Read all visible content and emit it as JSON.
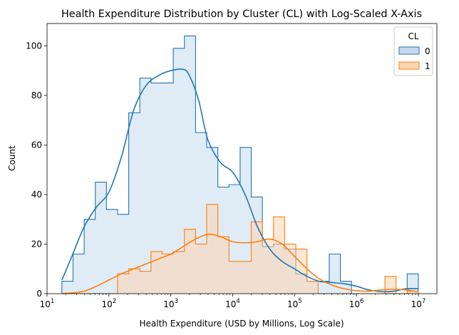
{
  "chart_data": {
    "type": "histogram",
    "title": "Health Expenditure Distribution by Cluster (CL) with Log-Scaled X-Axis",
    "xlabel": "Health Expenditure (USD by Millions, Log Scale)",
    "ylabel": "Count",
    "x_scale": "log",
    "x_range_log10": [
      1.0,
      7.3
    ],
    "ylim": [
      0,
      109
    ],
    "y_ticks": [
      0,
      20,
      40,
      60,
      80,
      100
    ],
    "x_ticks": [
      {
        "base": "10",
        "exp": "1",
        "value": 10
      },
      {
        "base": "10",
        "exp": "2",
        "value": 100
      },
      {
        "base": "10",
        "exp": "3",
        "value": 1000
      },
      {
        "base": "10",
        "exp": "4",
        "value": 10000
      },
      {
        "base": "10",
        "exp": "5",
        "value": 100000
      },
      {
        "base": "10",
        "exp": "6",
        "value": 1000000
      },
      {
        "base": "10",
        "exp": "7",
        "value": 10000000
      }
    ],
    "bin_edges_log10": [
      1.24,
      1.42,
      1.6,
      1.78,
      1.96,
      2.14,
      2.32,
      2.5,
      2.68,
      2.86,
      3.04,
      3.22,
      3.4,
      3.58,
      3.76,
      3.94,
      4.12,
      4.3,
      4.48,
      4.66,
      4.84,
      5.02,
      5.2,
      5.38,
      5.56,
      5.74,
      5.92,
      6.1,
      6.28,
      6.46,
      6.64,
      6.82,
      7.0
    ],
    "legend": {
      "title": "CL",
      "position": "top-right"
    },
    "series": [
      {
        "name": "0",
        "color": "#1f77b4",
        "fill": "#c5daec",
        "counts": [
          5,
          16,
          30,
          45,
          34,
          32,
          73,
          87,
          85,
          85,
          99,
          104,
          65,
          59,
          43,
          44,
          59,
          39,
          19,
          20,
          18,
          8,
          5,
          5,
          16,
          5,
          0,
          0,
          0,
          0,
          0,
          8
        ],
        "kde_x_log10": [
          1.24,
          1.4,
          1.6,
          1.8,
          2.0,
          2.2,
          2.4,
          2.6,
          2.8,
          3.0,
          3.2,
          3.3,
          3.45,
          3.6,
          3.8,
          4.0,
          4.2,
          4.4,
          4.6,
          4.8,
          5.0,
          5.2,
          5.4,
          5.6,
          5.8,
          6.0,
          6.2,
          6.4,
          6.6,
          6.8,
          7.0
        ],
        "kde_y": [
          5.5,
          15,
          27,
          35,
          41,
          55,
          74,
          84,
          88,
          90,
          90.5,
          88,
          78,
          62,
          53,
          49,
          40,
          27,
          18,
          13,
          10,
          7,
          5,
          4.5,
          4,
          3,
          1.5,
          0.8,
          1,
          2,
          2
        ]
      },
      {
        "name": "1",
        "color": "#ff7f0e",
        "fill": "#fdd5b1",
        "counts": [
          0,
          0,
          0,
          0,
          0,
          8,
          10,
          9,
          17,
          16,
          17,
          26,
          20,
          36,
          23,
          13,
          13,
          29,
          22,
          31,
          20,
          18,
          5,
          0,
          0,
          0,
          0,
          0,
          0,
          7,
          0,
          1
        ],
        "kde_x_log10": [
          1.24,
          1.4,
          1.6,
          1.8,
          2.0,
          2.2,
          2.4,
          2.6,
          2.8,
          3.0,
          3.2,
          3.4,
          3.6,
          3.8,
          4.0,
          4.2,
          4.4,
          4.6,
          4.8,
          5.0,
          5.2,
          5.4,
          5.6,
          5.8,
          6.0,
          6.2,
          6.4,
          6.6,
          6.8,
          7.0
        ],
        "kde_y": [
          0,
          0.3,
          1,
          3,
          5.5,
          8,
          10,
          12,
          14,
          16,
          19,
          22,
          24,
          23,
          21,
          20.5,
          21,
          22,
          20,
          15,
          10,
          6,
          3.5,
          2,
          1.2,
          1,
          1.5,
          1.8,
          1.5,
          0.8
        ]
      }
    ]
  }
}
